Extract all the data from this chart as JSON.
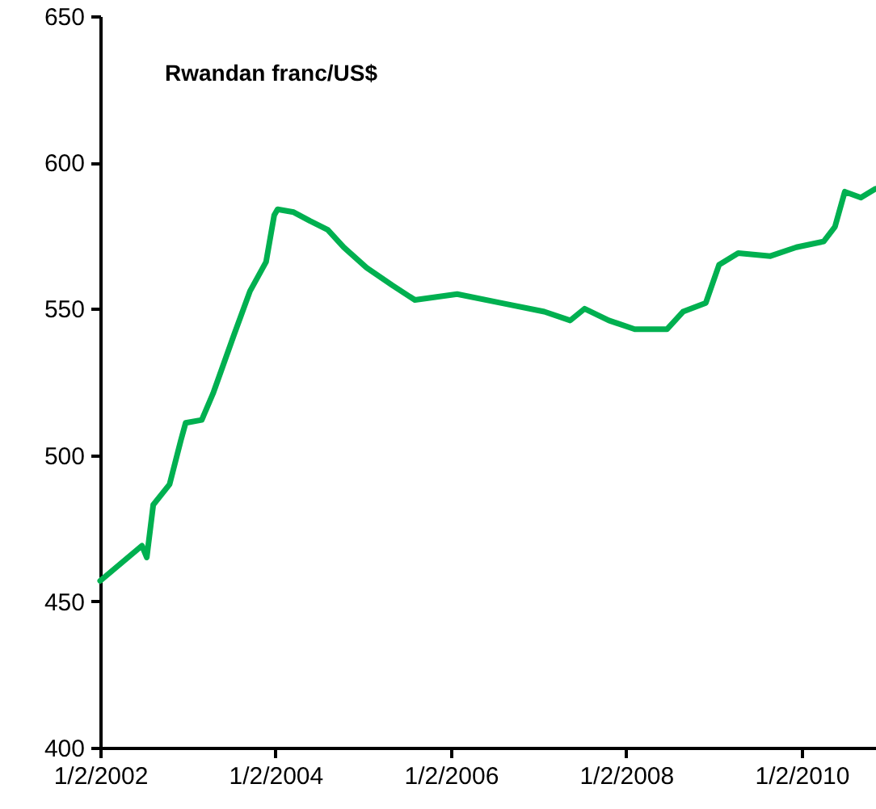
{
  "chart_data": {
    "type": "line",
    "title": "Rwandan franc/US$",
    "x": [
      "2002-01-02",
      "2002-06-25",
      "2002-07-15",
      "2002-08-11",
      "2002-10-18",
      "2002-12-04",
      "2002-12-24",
      "2003-03-01",
      "2003-04-17",
      "2003-07-13",
      "2003-09-18",
      "2003-11-24",
      "2003-12-28",
      "2004-01-11",
      "2004-03-18",
      "2004-05-25",
      "2004-08-07",
      "2004-10-13",
      "2005-01-16",
      "2005-05-03",
      "2005-08-05",
      "2006-01-28",
      "2006-07-28",
      "2007-01-26",
      "2007-05-14",
      "2007-07-13",
      "2007-10-22",
      "2008-02-07",
      "2008-06-20",
      "2008-08-26",
      "2008-11-29",
      "2009-01-23",
      "2009-04-13",
      "2009-08-25",
      "2009-12-11",
      "2010-04-04",
      "2010-05-21",
      "2010-07-01",
      "2010-09-06",
      "2010-11-06"
    ],
    "series": [
      {
        "color": "#00b050",
        "values": [
          457,
          469,
          465,
          483,
          490,
          505,
          511,
          512,
          521,
          541,
          556,
          566,
          582,
          584,
          583,
          580,
          577,
          571,
          564,
          558,
          553,
          555,
          552,
          549,
          546,
          550,
          546,
          543,
          543,
          549,
          552,
          565,
          569,
          568,
          571,
          573,
          578,
          590,
          588,
          591
        ]
      }
    ],
    "xlim": [
      "2002-01-02",
      "2010-11-08"
    ],
    "xticks": [
      {
        "value": "2002-01-02",
        "label": "1/2/2002"
      },
      {
        "value": "2004-01-02",
        "label": "1/2/2004"
      },
      {
        "value": "2006-01-02",
        "label": "1/2/2006"
      },
      {
        "value": "2008-01-02",
        "label": "1/2/2008"
      },
      {
        "value": "2010-01-02",
        "label": "1/2/2010"
      }
    ],
    "ylim": [
      400,
      650
    ],
    "yticks": [
      400,
      450,
      500,
      550,
      600,
      650
    ],
    "grid": false,
    "marker": "none",
    "line_style": "solid"
  }
}
